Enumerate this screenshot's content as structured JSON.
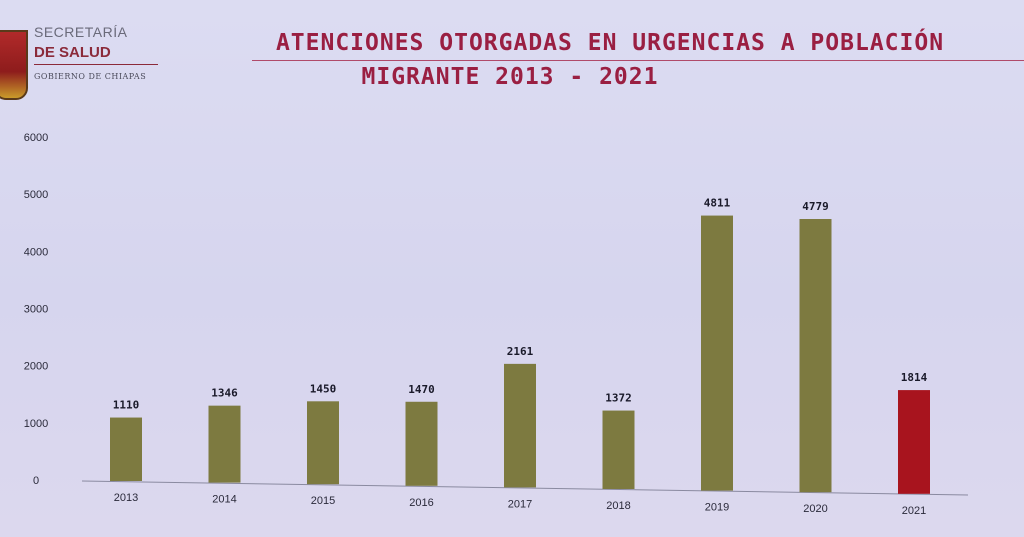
{
  "logo": {
    "line1": "SECRETARÍA",
    "line2": "DE SALUD",
    "line3": "GOBIERNO DE CHIAPAS"
  },
  "chart_data": {
    "type": "bar",
    "title": "ATENCIONES OTORGADAS EN URGENCIAS A POBLACIÓN MIGRANTE 2013 - 2021",
    "title_line1": "ATENCIONES OTORGADAS EN URGENCIAS A POBLACIÓN",
    "title_line2": "MIGRANTE 2013 - 2021",
    "categories": [
      "2013",
      "2014",
      "2015",
      "2016",
      "2017",
      "2018",
      "2019",
      "2020",
      "2021"
    ],
    "values": [
      1110,
      1346,
      1450,
      1470,
      2161,
      1372,
      4811,
      4779,
      1814
    ],
    "value_labels": [
      "1110",
      "1346",
      "1450",
      "1470",
      "2161",
      "1372",
      "4811",
      "4779",
      "1814"
    ],
    "yticks": [
      "0",
      "1000",
      "2000",
      "3000",
      "4000",
      "5000",
      "6000"
    ],
    "ylim": [
      0,
      6000
    ],
    "grid": false,
    "colors": {
      "bar": "#7d7a40",
      "highlight": "#a8141e",
      "highlight_index": 8
    }
  }
}
